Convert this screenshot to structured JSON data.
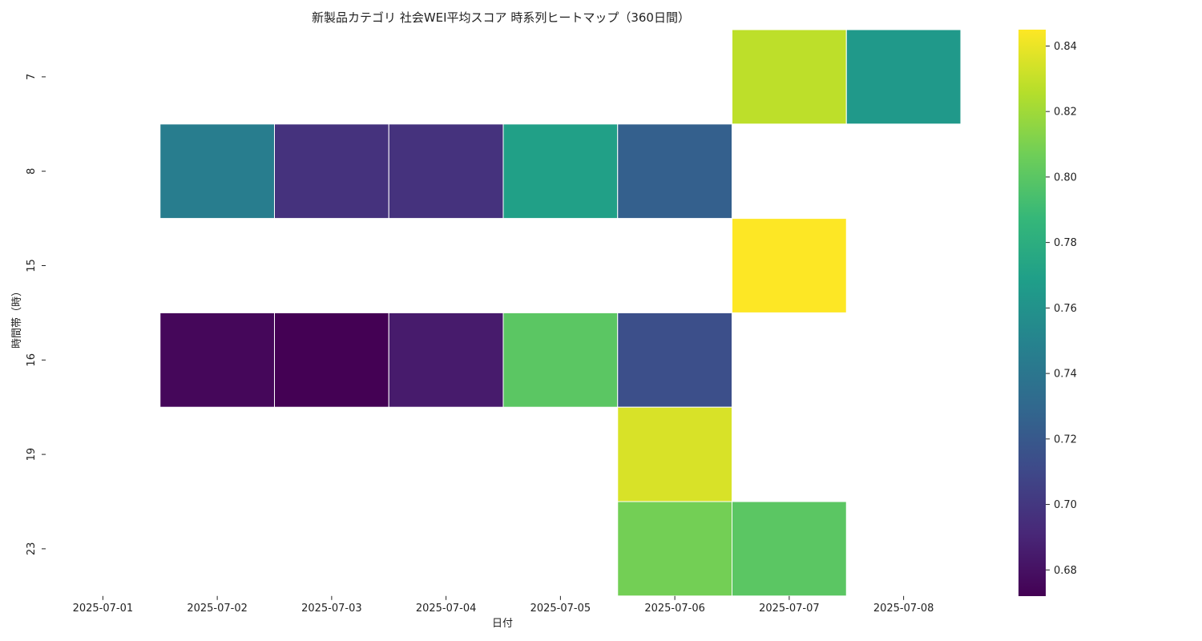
{
  "chart_data": {
    "type": "heatmap",
    "title": "新製品カテゴリ 社会WEI平均スコア 時系列ヒートマップ（360日間）",
    "xlabel": "日付",
    "ylabel": "時間帯（時）",
    "x_categories": [
      "2025-07-01",
      "2025-07-02",
      "2025-07-03",
      "2025-07-04",
      "2025-07-05",
      "2025-07-06",
      "2025-07-07",
      "2025-07-08"
    ],
    "y_categories": [
      "7",
      "8",
      "15",
      "16",
      "19",
      "23"
    ],
    "values": [
      [
        null,
        null,
        null,
        null,
        null,
        null,
        0.828,
        0.765
      ],
      [
        null,
        0.745,
        0.697,
        0.697,
        0.77,
        0.725,
        null,
        null
      ],
      [
        null,
        null,
        null,
        null,
        null,
        null,
        0.845,
        null
      ],
      [
        null,
        0.675,
        0.672,
        0.685,
        0.8,
        0.714,
        null,
        null
      ],
      [
        null,
        null,
        null,
        null,
        null,
        0.835,
        null,
        null
      ],
      [
        null,
        null,
        null,
        null,
        null,
        0.808,
        0.8,
        null
      ]
    ],
    "colorscale": "viridis",
    "colorbar": {
      "min": 0.672,
      "max": 0.845,
      "ticks": [
        0.68,
        0.7,
        0.72,
        0.74,
        0.76,
        0.78,
        0.8,
        0.82,
        0.84
      ],
      "tick_labels": [
        "0.68",
        "0.70",
        "0.72",
        "0.74",
        "0.76",
        "0.78",
        "0.80",
        "0.82",
        "0.84"
      ]
    },
    "grid": false
  }
}
